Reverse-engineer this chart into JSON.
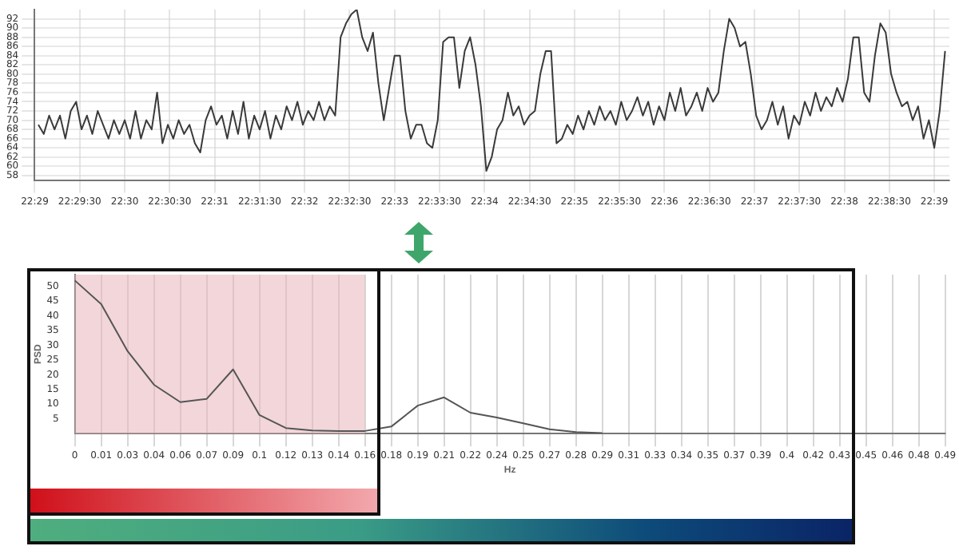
{
  "chart_data": [
    {
      "type": "line",
      "marker": "none",
      "grid": true,
      "x": [
        22.484,
        22.485,
        22.486,
        22.487,
        22.488,
        22.489,
        22.49,
        22.491,
        22.492,
        22.493,
        22.494,
        22.495,
        22.496,
        22.497,
        22.498,
        22.499,
        22.5,
        22.501,
        22.502,
        22.503,
        22.504,
        22.505,
        22.506,
        22.507,
        22.508,
        22.509,
        22.51,
        22.511,
        22.512,
        22.513,
        22.514,
        22.515,
        22.516,
        22.517,
        22.518,
        22.519,
        22.52,
        22.521,
        22.522,
        22.523,
        22.524,
        22.525,
        22.526,
        22.527,
        22.528,
        22.529,
        22.53,
        22.531,
        22.532,
        22.533,
        22.534,
        22.535,
        22.536,
        22.537,
        22.538,
        22.539,
        22.54,
        22.541,
        22.542,
        22.543,
        22.544,
        22.545,
        22.546,
        22.547,
        22.548,
        22.549,
        22.55,
        22.551,
        22.552,
        22.553,
        22.554,
        22.555,
        22.556,
        22.557,
        22.558,
        22.559,
        22.56,
        22.561,
        22.562,
        22.563,
        22.564,
        22.565,
        22.566,
        22.567,
        22.568,
        22.569,
        22.57,
        22.571,
        22.572,
        22.573,
        22.574,
        22.575,
        22.576,
        22.577,
        22.578,
        22.579,
        22.58,
        22.581,
        22.582,
        22.583,
        22.584,
        22.585,
        22.586,
        22.587,
        22.588,
        22.589,
        22.59,
        22.591,
        22.592,
        22.593,
        22.594,
        22.595,
        22.596,
        22.597,
        22.598,
        22.599,
        22.6,
        22.601,
        22.602,
        22.603,
        22.604,
        22.605,
        22.606,
        22.607,
        22.608,
        22.609,
        22.61,
        22.611,
        22.612,
        22.613,
        22.614,
        22.615,
        22.616,
        22.617,
        22.618,
        22.619,
        22.62,
        22.621,
        22.622,
        22.623,
        22.624,
        22.625,
        22.626,
        22.627,
        22.628,
        22.629,
        22.63,
        22.631,
        22.632,
        22.633,
        22.634,
        22.635,
        22.636,
        22.637,
        22.638,
        22.639,
        22.64,
        22.641,
        22.642,
        22.643,
        22.644,
        22.645,
        22.646,
        22.647,
        22.648,
        22.649,
        22.65,
        22.651,
        22.652
      ],
      "series": [
        {
          "color": "#3a3a3a",
          "values": [
            69,
            67,
            71,
            68,
            71,
            66,
            72,
            74,
            68,
            71,
            67,
            72,
            69,
            66,
            70,
            67,
            70,
            66,
            72,
            66,
            70,
            68,
            76,
            65,
            69,
            66,
            70,
            67,
            69,
            65,
            63,
            70,
            73,
            69,
            71,
            66,
            72,
            67,
            74,
            66,
            71,
            68,
            72,
            66,
            71,
            68,
            73,
            70,
            74,
            69,
            72,
            70,
            74,
            70,
            73,
            71,
            88,
            91,
            93,
            94,
            88,
            85,
            89,
            78,
            70,
            77,
            84,
            84,
            72,
            66,
            69,
            69,
            65,
            64,
            70,
            87,
            88,
            88,
            77,
            85,
            88,
            82,
            73,
            59,
            62,
            68,
            70,
            76,
            71,
            73,
            69,
            71,
            72,
            80,
            85,
            85,
            65,
            66,
            69,
            67,
            71,
            68,
            72,
            69,
            73,
            70,
            72,
            69,
            74,
            70,
            72,
            75,
            71,
            74,
            69,
            73,
            70,
            76,
            72,
            77,
            71,
            73,
            76,
            72,
            77,
            74,
            76,
            85,
            92,
            90,
            86,
            87,
            80,
            71,
            68,
            70,
            74,
            69,
            73,
            66,
            71,
            69,
            74,
            71,
            76,
            72,
            75,
            73,
            77,
            74,
            79,
            88,
            88,
            76,
            74,
            84,
            91,
            89,
            80,
            76,
            73,
            74,
            70,
            73,
            66,
            70,
            64,
            72,
            85
          ]
        }
      ],
      "xlim": [
        22.4833,
        22.6528
      ],
      "xticks": [
        {
          "value": 22.48333,
          "label": "22:29"
        },
        {
          "value": 22.49167,
          "label": "22:29:30"
        },
        {
          "value": 22.5,
          "label": "22:30"
        },
        {
          "value": 22.50833,
          "label": "22:30:30"
        },
        {
          "value": 22.51667,
          "label": "22:31"
        },
        {
          "value": 22.525,
          "label": "22:31:30"
        },
        {
          "value": 22.53333,
          "label": "22:32"
        },
        {
          "value": 22.54167,
          "label": "22:32:30"
        },
        {
          "value": 22.55,
          "label": "22:33"
        },
        {
          "value": 22.55833,
          "label": "22:33:30"
        },
        {
          "value": 22.56667,
          "label": "22:34"
        },
        {
          "value": 22.575,
          "label": "22:34:30"
        },
        {
          "value": 22.58333,
          "label": "22:35"
        },
        {
          "value": 22.59167,
          "label": "22:35:30"
        },
        {
          "value": 22.6,
          "label": "22:36"
        },
        {
          "value": 22.60833,
          "label": "22:36:30"
        },
        {
          "value": 22.61667,
          "label": "22:37"
        },
        {
          "value": 22.625,
          "label": "22:37:30"
        },
        {
          "value": 22.63333,
          "label": "22:38"
        },
        {
          "value": 22.64167,
          "label": "22:38:30"
        },
        {
          "value": 22.65,
          "label": "22:39"
        }
      ],
      "ylim": [
        57,
        94
      ],
      "yticks": [
        58,
        60,
        62,
        64,
        66,
        68,
        70,
        72,
        74,
        76,
        78,
        80,
        82,
        84,
        86,
        88,
        90,
        92
      ]
    },
    {
      "type": "line",
      "marker": "none",
      "grid": "x",
      "xlabel": "Hz",
      "ylabel": "PSD",
      "categories": [
        "0",
        "0.01",
        "0.03",
        "0.04",
        "0.06",
        "0.07",
        "0.09",
        "0.1",
        "0.12",
        "0.13",
        "0.14",
        "0.16",
        "0.18",
        "0.19",
        "0.21",
        "0.22",
        "0.24",
        "0.25",
        "0.27",
        "0.28",
        "0.29",
        "0.31",
        "0.33",
        "0.34",
        "0.35",
        "0.37",
        "0.39",
        "0.4",
        "0.42",
        "0.43",
        "0.45",
        "0.46",
        "0.48",
        "0.49"
      ],
      "series": [
        {
          "color": "#555555",
          "values": [
            52,
            44,
            28,
            16.6,
            10.7,
            11.8,
            21.8,
            6.3,
            1.9,
            1.1,
            0.9,
            0.9,
            2.4,
            9.5,
            12.3,
            7.1,
            5.5,
            3.5,
            1.5,
            0.5,
            0.2,
            null,
            null,
            null,
            null,
            null,
            null,
            null,
            null,
            null,
            null,
            null,
            null,
            null
          ]
        }
      ],
      "ylim": [
        0,
        54
      ],
      "yticks": [
        5,
        10,
        15,
        20,
        25,
        30,
        35,
        40,
        45,
        50
      ],
      "bands": [
        {
          "axis": "x",
          "from": "0",
          "to": "0.16",
          "color": "#e8b4bc"
        }
      ]
    }
  ]
}
